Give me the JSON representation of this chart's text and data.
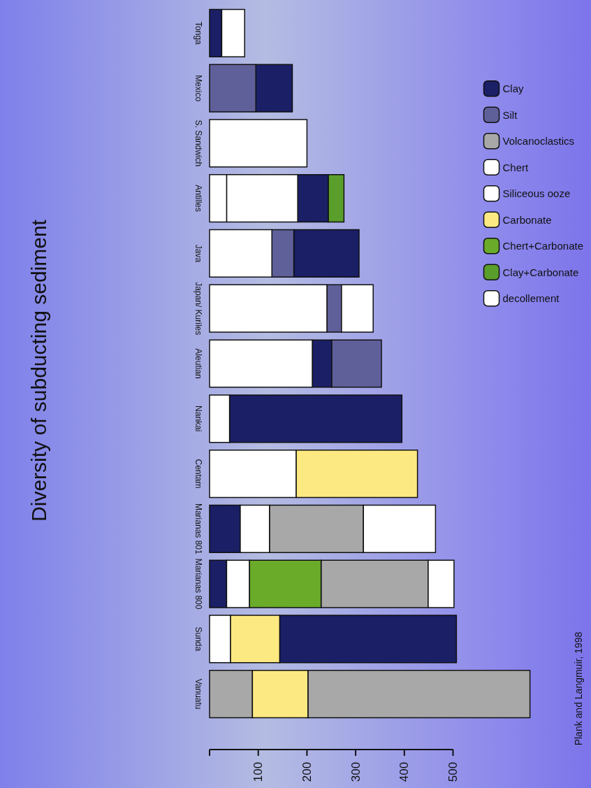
{
  "chart_data": {
    "type": "bar",
    "orientation": "horizontal",
    "title": "Diversity of subducting sediment",
    "annotations": [
      "Plank and Langmuir, 1998"
    ],
    "categories": [
      "Tonga",
      "Mexico",
      "S. Sandwich",
      "Antilles",
      "Java",
      "Japan/ Kuriles",
      "Aleutian",
      "Nankai",
      "Centam",
      "Marianas 801",
      "Marianas 800",
      "Sunda",
      "Vanuatu"
    ],
    "xlim": [
      0,
      660
    ],
    "xticks": [
      {
        "value": 0,
        "label": null
      },
      100,
      200,
      300,
      400,
      500
    ],
    "grid": false,
    "legend": "right",
    "series": [
      {
        "name": "Clay",
        "color": "#1a1f66",
        "base": [
          0,
          95,
          null,
          181,
          173,
          null,
          211,
          41,
          null,
          0,
          0,
          144,
          null
        ],
        "values": [
          25,
          75,
          null,
          63,
          134,
          null,
          40,
          354,
          null,
          63,
          35,
          363,
          null
        ]
      },
      {
        "name": "Silt",
        "color": "#5f5f9a",
        "base": [
          null,
          0,
          null,
          null,
          128,
          241,
          251,
          null,
          null,
          null,
          null,
          null,
          null
        ],
        "values": [
          null,
          95,
          null,
          null,
          45,
          30,
          102,
          null,
          null,
          null,
          null,
          null,
          null
        ]
      },
      {
        "name": "Volcanoclastics",
        "color": "#a8a8a8",
        "base": [
          null,
          null,
          null,
          null,
          null,
          null,
          null,
          null,
          null,
          123,
          229,
          null,
          0
        ],
        "values": [
          null,
          null,
          null,
          null,
          null,
          null,
          null,
          null,
          null,
          193,
          220,
          null,
          88
        ]
      },
      {
        "color": "#a8a8a8",
        "base": [
          null,
          null,
          null,
          null,
          null,
          null,
          null,
          null,
          null,
          null,
          null,
          null,
          202
        ],
        "values": [
          null,
          null,
          null,
          null,
          null,
          null,
          null,
          null,
          null,
          null,
          null,
          null,
          456
        ]
      },
      {
        "name": "Chert",
        "color": "#ffffff",
        "base": [
          25,
          null,
          null,
          null,
          null,
          271,
          null,
          null,
          null,
          63,
          35,
          null,
          null
        ],
        "values": [
          47,
          null,
          null,
          null,
          null,
          65,
          null,
          null,
          null,
          60,
          47,
          null,
          null
        ]
      },
      {
        "color": "#ffffff",
        "base": [
          null,
          null,
          null,
          null,
          null,
          null,
          null,
          null,
          null,
          316,
          449,
          null,
          null
        ],
        "values": [
          null,
          null,
          null,
          null,
          null,
          null,
          null,
          null,
          null,
          148,
          53,
          null,
          null
        ]
      },
      {
        "name": "Siliceous ooze",
        "color": "#ffffff",
        "base": [
          null,
          null,
          0,
          35,
          0,
          0,
          0,
          null,
          0,
          null,
          null,
          0,
          null
        ],
        "values": [
          null,
          null,
          200,
          146,
          128,
          241,
          211,
          null,
          178,
          null,
          null,
          43,
          null
        ]
      },
      {
        "name": "Carbonate",
        "color": "#fde981",
        "base": [
          null,
          null,
          null,
          null,
          null,
          null,
          null,
          null,
          178,
          null,
          null,
          43,
          88
        ],
        "values": [
          null,
          null,
          null,
          null,
          null,
          null,
          null,
          null,
          249,
          null,
          null,
          101,
          114
        ]
      },
      {
        "name": "Chert+Carbonate",
        "color": "#6aab2a",
        "base": [
          null,
          null,
          null,
          null,
          null,
          null,
          null,
          null,
          null,
          null,
          82,
          null,
          null
        ],
        "values": [
          null,
          null,
          null,
          null,
          null,
          null,
          null,
          null,
          null,
          null,
          147,
          null,
          null
        ]
      },
      {
        "name": "Clay+Carbonate",
        "color": "#5a9e2c",
        "base": [
          null,
          null,
          null,
          244,
          null,
          null,
          null,
          null,
          null,
          null,
          null,
          null,
          null
        ],
        "values": [
          null,
          null,
          null,
          32,
          null,
          null,
          null,
          null,
          null,
          null,
          null,
          null,
          null
        ]
      },
      {
        "name": "decollement",
        "color": "#ffffff",
        "base": [
          null,
          null,
          null,
          0,
          null,
          null,
          null,
          0,
          null,
          null,
          null,
          null,
          null
        ],
        "values": [
          null,
          null,
          null,
          35,
          null,
          null,
          null,
          41,
          null,
          null,
          null,
          null,
          null
        ]
      }
    ]
  }
}
